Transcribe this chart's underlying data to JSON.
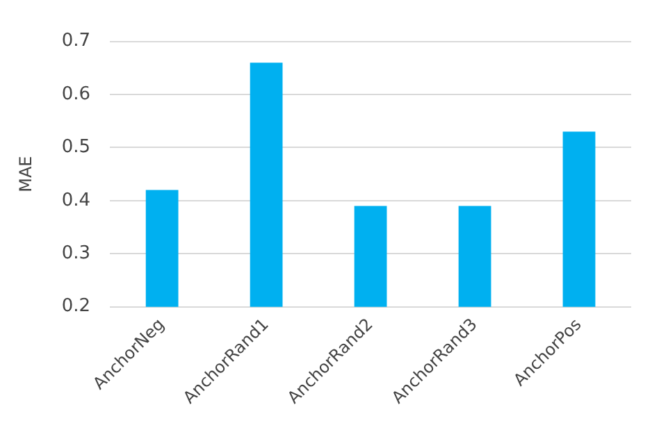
{
  "chart_data": {
    "type": "bar",
    "ylabel": "MAE",
    "categories": [
      "AnchorNeg",
      "AnchorRand1",
      "AnchorRand2",
      "AnchorRand3",
      "AnchorPos"
    ],
    "values": [
      0.42,
      0.66,
      0.39,
      0.39,
      0.53
    ],
    "color": "#00b0f0",
    "ylim": [
      0.2,
      0.7
    ],
    "yticks": [
      0.2,
      0.3,
      0.4,
      0.5,
      0.6,
      0.7
    ],
    "grid": "y",
    "legend": false
  }
}
